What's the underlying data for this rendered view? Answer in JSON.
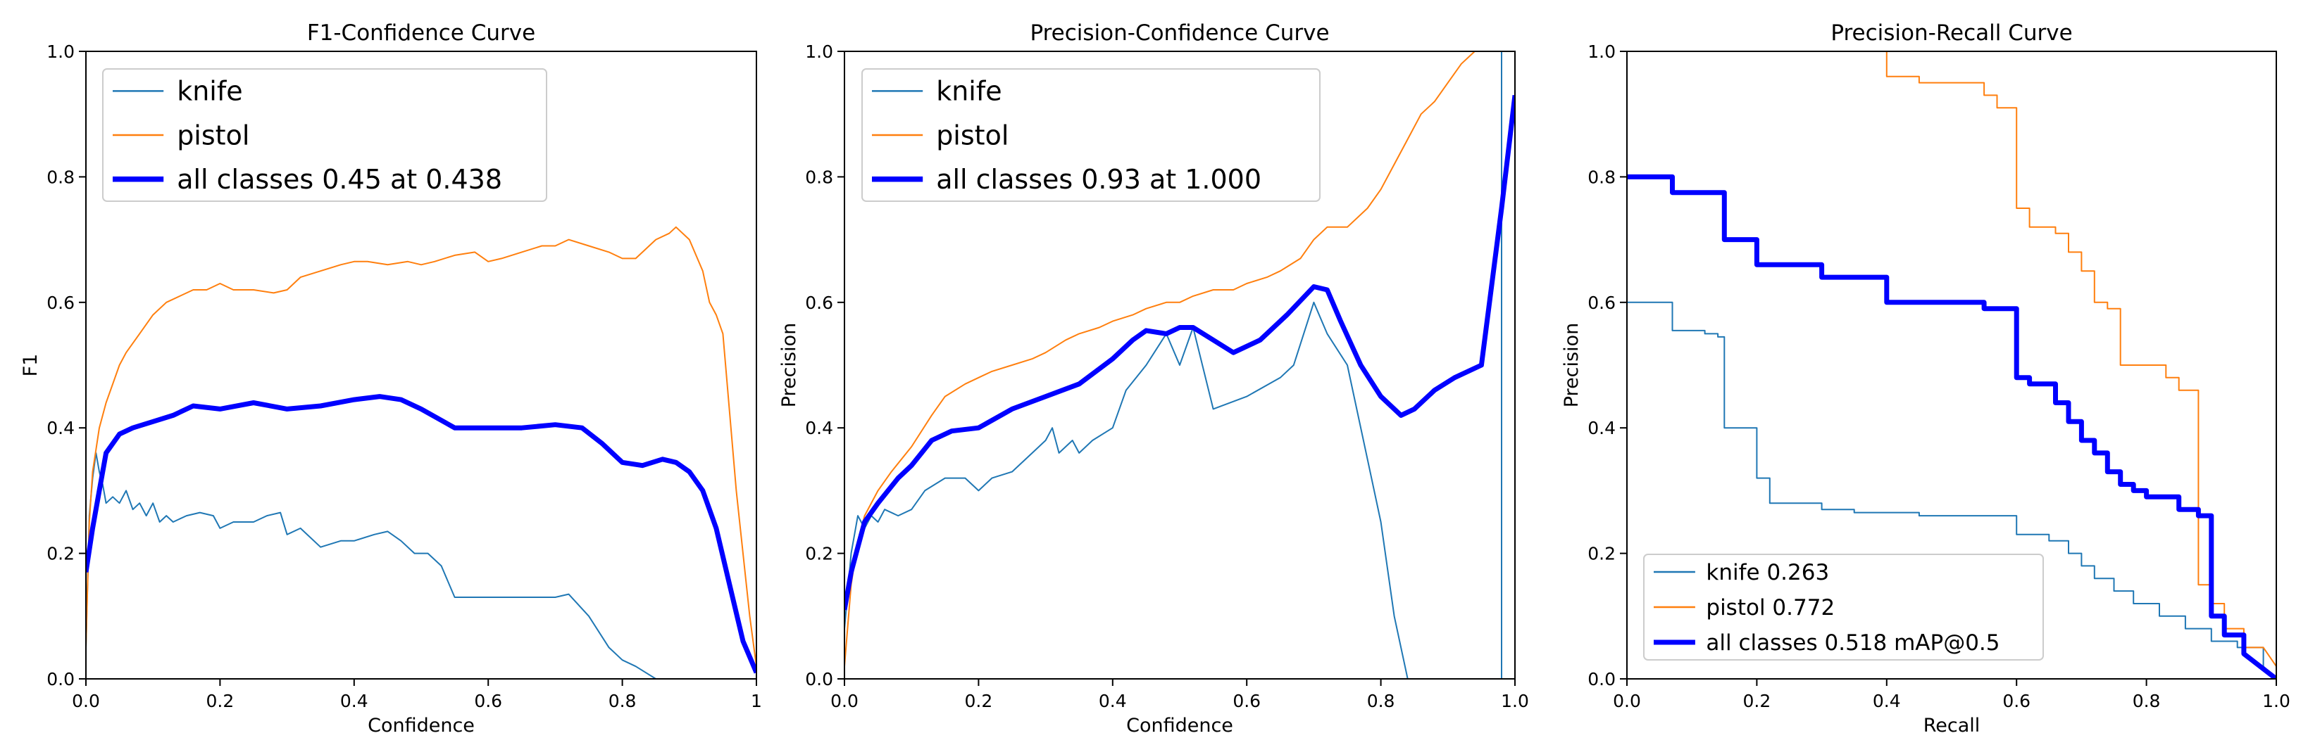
{
  "colors": {
    "knife": "#1f77b4",
    "pistol": "#ff7f0e",
    "all": "#0000ff",
    "axis": "#000000"
  },
  "chart_data": [
    {
      "type": "line",
      "title": "F1-Confidence Curve",
      "xlabel": "Confidence",
      "ylabel": "F1",
      "xlim": [
        0,
        1
      ],
      "ylim": [
        0,
        1
      ],
      "xticks": [
        "0.0",
        "0.2",
        "0.4",
        "0.6",
        "0.8",
        "1"
      ],
      "yticks": [
        "0.0",
        "0.2",
        "0.4",
        "0.6",
        "0.8",
        "1.0"
      ],
      "legend_position": "top-left",
      "series": [
        {
          "name": "knife",
          "label": "knife",
          "color": "#1f77b4",
          "width": 2,
          "x": [
            0,
            0.005,
            0.01,
            0.015,
            0.02,
            0.025,
            0.03,
            0.04,
            0.05,
            0.06,
            0.07,
            0.08,
            0.09,
            0.1,
            0.11,
            0.12,
            0.13,
            0.15,
            0.17,
            0.19,
            0.2,
            0.22,
            0.25,
            0.27,
            0.29,
            0.3,
            0.32,
            0.35,
            0.38,
            0.4,
            0.43,
            0.45,
            0.47,
            0.49,
            0.51,
            0.53,
            0.55,
            0.6,
            0.65,
            0.7,
            0.72,
            0.75,
            0.78,
            0.8,
            0.82,
            0.85
          ],
          "y": [
            0.05,
            0.26,
            0.32,
            0.36,
            0.33,
            0.31,
            0.28,
            0.29,
            0.28,
            0.3,
            0.27,
            0.28,
            0.26,
            0.28,
            0.25,
            0.26,
            0.25,
            0.26,
            0.265,
            0.26,
            0.24,
            0.25,
            0.25,
            0.26,
            0.265,
            0.23,
            0.24,
            0.21,
            0.22,
            0.22,
            0.23,
            0.235,
            0.22,
            0.2,
            0.2,
            0.18,
            0.13,
            0.13,
            0.13,
            0.13,
            0.135,
            0.1,
            0.05,
            0.03,
            0.02,
            0
          ]
        },
        {
          "name": "pistol",
          "label": "pistol",
          "color": "#ff7f0e",
          "width": 2,
          "x": [
            0,
            0.005,
            0.01,
            0.02,
            0.03,
            0.04,
            0.05,
            0.06,
            0.08,
            0.1,
            0.12,
            0.14,
            0.16,
            0.18,
            0.2,
            0.22,
            0.25,
            0.28,
            0.3,
            0.32,
            0.35,
            0.38,
            0.4,
            0.42,
            0.45,
            0.48,
            0.5,
            0.52,
            0.55,
            0.58,
            0.6,
            0.62,
            0.65,
            0.68,
            0.7,
            0.72,
            0.75,
            0.78,
            0.8,
            0.82,
            0.85,
            0.87,
            0.88,
            0.9,
            0.92,
            0.93,
            0.94,
            0.95,
            0.97,
            0.99,
            1.0
          ],
          "y": [
            0.05,
            0.25,
            0.33,
            0.4,
            0.44,
            0.47,
            0.5,
            0.52,
            0.55,
            0.58,
            0.6,
            0.61,
            0.62,
            0.62,
            0.63,
            0.62,
            0.62,
            0.615,
            0.62,
            0.64,
            0.65,
            0.66,
            0.665,
            0.665,
            0.66,
            0.665,
            0.66,
            0.665,
            0.675,
            0.68,
            0.665,
            0.67,
            0.68,
            0.69,
            0.69,
            0.7,
            0.69,
            0.68,
            0.67,
            0.67,
            0.7,
            0.71,
            0.72,
            0.7,
            0.65,
            0.6,
            0.58,
            0.55,
            0.3,
            0.1,
            0.02
          ]
        },
        {
          "name": "all",
          "label": "all classes 0.45 at 0.438",
          "color": "#0000ff",
          "width": 7,
          "x": [
            0,
            0.01,
            0.02,
            0.03,
            0.05,
            0.07,
            0.1,
            0.13,
            0.16,
            0.2,
            0.25,
            0.3,
            0.35,
            0.4,
            0.438,
            0.47,
            0.5,
            0.55,
            0.6,
            0.65,
            0.7,
            0.74,
            0.77,
            0.8,
            0.83,
            0.86,
            0.88,
            0.9,
            0.92,
            0.94,
            0.96,
            0.98,
            1.0
          ],
          "y": [
            0.17,
            0.24,
            0.3,
            0.36,
            0.39,
            0.4,
            0.41,
            0.42,
            0.435,
            0.43,
            0.44,
            0.43,
            0.435,
            0.445,
            0.45,
            0.445,
            0.43,
            0.4,
            0.4,
            0.4,
            0.405,
            0.4,
            0.375,
            0.345,
            0.34,
            0.35,
            0.345,
            0.33,
            0.3,
            0.24,
            0.15,
            0.06,
            0.01
          ]
        }
      ]
    },
    {
      "type": "line",
      "title": "Precision-Confidence Curve",
      "xlabel": "Confidence",
      "ylabel": "Precision",
      "xlim": [
        0,
        1
      ],
      "ylim": [
        0,
        1
      ],
      "xticks": [
        "0.0",
        "0.2",
        "0.4",
        "0.6",
        "0.8",
        "1.0"
      ],
      "yticks": [
        "0.0",
        "0.2",
        "0.4",
        "0.6",
        "0.8",
        "1.0"
      ],
      "legend_position": "top-left",
      "series": [
        {
          "name": "knife",
          "label": "knife",
          "color": "#1f77b4",
          "width": 2,
          "x": [
            0,
            0.01,
            0.02,
            0.03,
            0.04,
            0.05,
            0.06,
            0.08,
            0.1,
            0.12,
            0.15,
            0.18,
            0.2,
            0.22,
            0.25,
            0.28,
            0.3,
            0.31,
            0.32,
            0.34,
            0.35,
            0.37,
            0.4,
            0.42,
            0.45,
            0.48,
            0.5,
            0.52,
            0.55,
            0.6,
            0.65,
            0.67,
            0.7,
            0.72,
            0.75,
            0.78,
            0.8,
            0.82,
            0.84,
            0.98,
            0.98,
            0.99
          ],
          "y": [
            0.08,
            0.2,
            0.26,
            0.24,
            0.26,
            0.25,
            0.27,
            0.26,
            0.27,
            0.3,
            0.32,
            0.32,
            0.3,
            0.32,
            0.33,
            0.36,
            0.38,
            0.4,
            0.36,
            0.38,
            0.36,
            0.38,
            0.4,
            0.46,
            0.5,
            0.55,
            0.5,
            0.56,
            0.43,
            0.45,
            0.48,
            0.5,
            0.6,
            0.55,
            0.5,
            0.35,
            0.25,
            0.1,
            0.0,
            0.0,
            1.0,
            1.0
          ]
        },
        {
          "name": "pistol",
          "label": "pistol",
          "color": "#ff7f0e",
          "width": 2,
          "x": [
            0,
            0.01,
            0.02,
            0.03,
            0.05,
            0.07,
            0.1,
            0.13,
            0.15,
            0.18,
            0.2,
            0.22,
            0.25,
            0.28,
            0.3,
            0.33,
            0.35,
            0.38,
            0.4,
            0.43,
            0.45,
            0.48,
            0.5,
            0.52,
            0.55,
            0.58,
            0.6,
            0.63,
            0.65,
            0.68,
            0.7,
            0.72,
            0.75,
            0.78,
            0.8,
            0.82,
            0.84,
            0.86,
            0.88,
            0.9,
            0.92,
            0.94,
            0.95
          ],
          "y": [
            0.02,
            0.15,
            0.22,
            0.26,
            0.3,
            0.33,
            0.37,
            0.42,
            0.45,
            0.47,
            0.48,
            0.49,
            0.5,
            0.51,
            0.52,
            0.54,
            0.55,
            0.56,
            0.57,
            0.58,
            0.59,
            0.6,
            0.6,
            0.61,
            0.62,
            0.62,
            0.63,
            0.64,
            0.65,
            0.67,
            0.7,
            0.72,
            0.72,
            0.75,
            0.78,
            0.82,
            0.86,
            0.9,
            0.92,
            0.95,
            0.98,
            1.0,
            1.0
          ]
        },
        {
          "name": "all",
          "label": "all classes 0.93 at 1.000",
          "color": "#0000ff",
          "width": 7,
          "x": [
            0,
            0.01,
            0.02,
            0.03,
            0.05,
            0.08,
            0.1,
            0.13,
            0.16,
            0.2,
            0.25,
            0.3,
            0.35,
            0.4,
            0.43,
            0.45,
            0.48,
            0.5,
            0.52,
            0.55,
            0.58,
            0.62,
            0.66,
            0.7,
            0.72,
            0.74,
            0.77,
            0.8,
            0.83,
            0.85,
            0.88,
            0.91,
            0.95,
            0.98,
            1.0
          ],
          "y": [
            0.11,
            0.17,
            0.21,
            0.25,
            0.28,
            0.32,
            0.34,
            0.38,
            0.395,
            0.4,
            0.43,
            0.45,
            0.47,
            0.51,
            0.54,
            0.555,
            0.55,
            0.56,
            0.56,
            0.54,
            0.52,
            0.54,
            0.58,
            0.625,
            0.62,
            0.57,
            0.5,
            0.45,
            0.42,
            0.43,
            0.46,
            0.48,
            0.5,
            0.75,
            0.93
          ]
        }
      ]
    },
    {
      "type": "line",
      "title": "Precision-Recall Curve",
      "xlabel": "Recall",
      "ylabel": "Precision",
      "xlim": [
        0,
        1
      ],
      "ylim": [
        0,
        1
      ],
      "xticks": [
        "0.0",
        "0.2",
        "0.4",
        "0.6",
        "0.8",
        "1.0"
      ],
      "yticks": [
        "0.0",
        "0.2",
        "0.4",
        "0.6",
        "0.8",
        "1.0"
      ],
      "legend_position": "bottom-left",
      "series": [
        {
          "name": "knife",
          "label": "knife 0.263",
          "color": "#1f77b4",
          "width": 2,
          "x": [
            0,
            0.07,
            0.07,
            0.12,
            0.12,
            0.14,
            0.14,
            0.15,
            0.15,
            0.2,
            0.2,
            0.22,
            0.22,
            0.3,
            0.3,
            0.35,
            0.35,
            0.45,
            0.45,
            0.6,
            0.6,
            0.65,
            0.65,
            0.68,
            0.68,
            0.7,
            0.7,
            0.72,
            0.72,
            0.75,
            0.75,
            0.78,
            0.78,
            0.82,
            0.82,
            0.86,
            0.86,
            0.9,
            0.9,
            0.94,
            0.94,
            0.98,
            0.98,
            1.0
          ],
          "y": [
            0.6,
            0.6,
            0.555,
            0.555,
            0.55,
            0.55,
            0.545,
            0.545,
            0.4,
            0.4,
            0.32,
            0.32,
            0.28,
            0.28,
            0.27,
            0.27,
            0.265,
            0.265,
            0.26,
            0.26,
            0.23,
            0.23,
            0.22,
            0.22,
            0.2,
            0.2,
            0.18,
            0.18,
            0.16,
            0.16,
            0.14,
            0.14,
            0.12,
            0.12,
            0.1,
            0.1,
            0.08,
            0.08,
            0.06,
            0.06,
            0.05,
            0.05,
            0.02,
            0.0
          ]
        },
        {
          "name": "pistol",
          "label": "pistol 0.772",
          "color": "#ff7f0e",
          "width": 2,
          "x": [
            0.38,
            0.4,
            0.4,
            0.45,
            0.45,
            0.55,
            0.55,
            0.57,
            0.57,
            0.6,
            0.6,
            0.62,
            0.62,
            0.66,
            0.66,
            0.68,
            0.68,
            0.7,
            0.7,
            0.72,
            0.72,
            0.74,
            0.74,
            0.76,
            0.76,
            0.8,
            0.8,
            0.83,
            0.83,
            0.85,
            0.85,
            0.88,
            0.88,
            0.9,
            0.9,
            0.92,
            0.92,
            0.95,
            0.95,
            0.98,
            1.0
          ],
          "y": [
            1.0,
            1.0,
            0.96,
            0.96,
            0.95,
            0.95,
            0.93,
            0.93,
            0.91,
            0.91,
            0.75,
            0.75,
            0.72,
            0.72,
            0.71,
            0.71,
            0.68,
            0.68,
            0.65,
            0.65,
            0.6,
            0.6,
            0.59,
            0.59,
            0.5,
            0.5,
            0.5,
            0.5,
            0.48,
            0.48,
            0.46,
            0.46,
            0.15,
            0.15,
            0.12,
            0.12,
            0.08,
            0.08,
            0.05,
            0.05,
            0.02
          ]
        },
        {
          "name": "all",
          "label": "all classes 0.518 mAP@0.5",
          "color": "#0000ff",
          "width": 7,
          "x": [
            0,
            0.07,
            0.07,
            0.15,
            0.15,
            0.2,
            0.2,
            0.3,
            0.3,
            0.4,
            0.4,
            0.55,
            0.55,
            0.6,
            0.6,
            0.62,
            0.62,
            0.66,
            0.66,
            0.68,
            0.68,
            0.7,
            0.7,
            0.72,
            0.72,
            0.74,
            0.74,
            0.76,
            0.76,
            0.78,
            0.78,
            0.8,
            0.8,
            0.85,
            0.85,
            0.88,
            0.88,
            0.9,
            0.9,
            0.92,
            0.92,
            0.95,
            0.95,
            1.0
          ],
          "y": [
            0.8,
            0.8,
            0.775,
            0.775,
            0.7,
            0.7,
            0.66,
            0.66,
            0.64,
            0.64,
            0.6,
            0.6,
            0.59,
            0.59,
            0.48,
            0.48,
            0.47,
            0.47,
            0.44,
            0.44,
            0.41,
            0.41,
            0.38,
            0.38,
            0.36,
            0.36,
            0.33,
            0.33,
            0.31,
            0.31,
            0.3,
            0.3,
            0.29,
            0.29,
            0.27,
            0.27,
            0.26,
            0.26,
            0.1,
            0.1,
            0.07,
            0.07,
            0.04,
            0.0
          ]
        }
      ]
    }
  ]
}
